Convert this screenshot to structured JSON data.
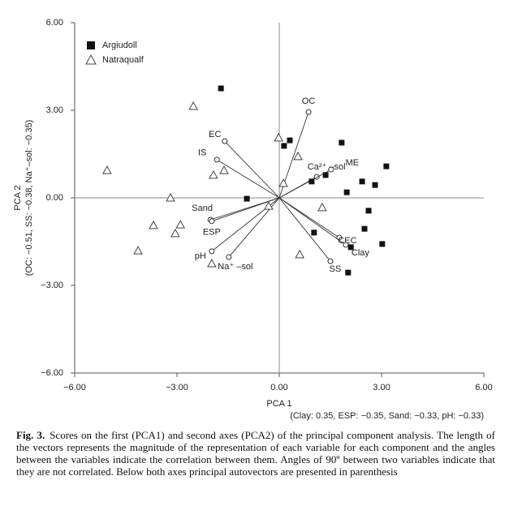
{
  "chart_data": {
    "type": "scatter",
    "xlabel": "PCA 1",
    "xlabel_note": "(Clay: 0.35, ESP: −0.35, Sand: −0.33, pH: −0.33)",
    "ylabel": "PCA 2",
    "ylabel_note": "(OC: −0.51, SS: −0.38, Na⁺–sol: −0.35)",
    "xlim": [
      -6,
      6
    ],
    "ylim": [
      -6,
      6
    ],
    "xticks": [
      {
        "value": -6,
        "label": "−6.00"
      },
      {
        "value": -3,
        "label": "−3.00"
      },
      {
        "value": 0,
        "label": "0.00"
      },
      {
        "value": 3,
        "label": "3.00"
      },
      {
        "value": 6,
        "label": "6.00"
      }
    ],
    "yticks": [
      {
        "value": -6,
        "label": "−6.00"
      },
      {
        "value": -3,
        "label": "−3.00"
      },
      {
        "value": 0,
        "label": "0.00"
      },
      {
        "value": 3,
        "label": "3.00"
      },
      {
        "value": 6,
        "label": "6.00"
      }
    ],
    "legend": "top-left",
    "series": [
      {
        "name": "Argiudoll",
        "color": "#111111",
        "marker": "square",
        "x": [
          -1.71,
          -0.95,
          0.14,
          0.31,
          1.83,
          1.36,
          0.95,
          2.43,
          2.81,
          3.14,
          1.98,
          2.62,
          2.5,
          2.1,
          3.02,
          1.02,
          2.02
        ],
        "y": [
          3.75,
          -0.03,
          1.78,
          1.97,
          1.89,
          0.78,
          0.56,
          0.56,
          0.44,
          1.08,
          0.19,
          -0.44,
          -1.06,
          -1.69,
          -1.58,
          -1.19,
          -2.56
        ]
      },
      {
        "name": "Natraqualf",
        "color": "#444444",
        "marker": "triangle-open",
        "x": [
          -2.52,
          -5.05,
          -1.62,
          -1.93,
          -3.19,
          -3.69,
          -2.9,
          -3.05,
          -4.14,
          -1.98,
          -0.31,
          -0.02,
          0.12,
          0.55,
          1.26,
          0.6
        ],
        "y": [
          3.14,
          0.94,
          0.94,
          0.78,
          0,
          -0.94,
          -0.92,
          -1.22,
          -1.81,
          -2.25,
          -0.28,
          2.06,
          0.5,
          1.42,
          -0.33,
          -1.94
        ]
      }
    ],
    "vectors": [
      {
        "name": "OC",
        "x": 0.86,
        "y": 2.94
      },
      {
        "name": "EC",
        "x": -1.6,
        "y": 1.94
      },
      {
        "name": "IS",
        "x": -1.83,
        "y": 1.31
      },
      {
        "name": "Sand",
        "x": -2.02,
        "y": -0.75
      },
      {
        "name": "ESP",
        "x": -1.98,
        "y": -0.8
      },
      {
        "name": "pH",
        "x": -1.98,
        "y": -1.83
      },
      {
        "name": "Na⁺ –sol",
        "x": -1.48,
        "y": -2.03
      },
      {
        "name": "Ca²⁺ –sol",
        "x": 1.1,
        "y": 0.72
      },
      {
        "name": "ME",
        "x": 1.52,
        "y": 0.97
      },
      {
        "name": "CEC",
        "x": 1.76,
        "y": -1.36
      },
      {
        "name": "Clay",
        "x": 1.95,
        "y": -1.61
      },
      {
        "name": "SS",
        "x": 1.5,
        "y": -2.17
      }
    ]
  },
  "caption": {
    "label": "Fig. 3.",
    "text": "Scores on the first (PCA1) and second axes (PCA2) of the principal component analysis. The length of the vectors represents the magnitude of the representation of each variable for each component and the angles between the variables indicate the correlation between them. Angles of 90º between two variables indicate that they are not correlated. Below both axes principal autovectors are presented in parenthesis"
  }
}
